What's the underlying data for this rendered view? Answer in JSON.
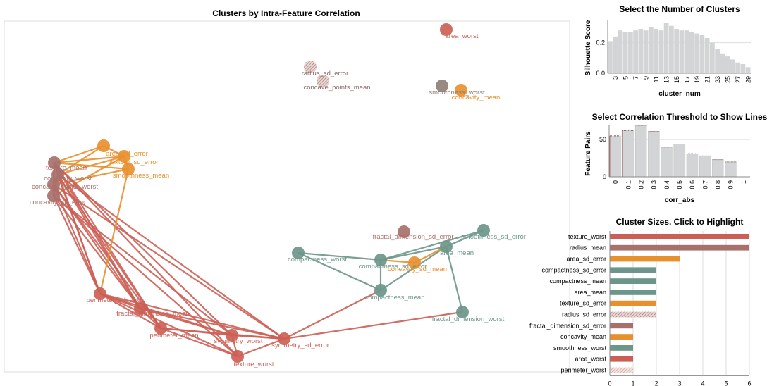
{
  "colors": {
    "red": "#cc5f55",
    "brown": "#a8706b",
    "orange": "#e8902e",
    "teal": "#6c968a",
    "gray": "#8f7f77",
    "bar": "#d3d4d5",
    "rose": "#b8847f"
  },
  "chart_data": [
    {
      "id": "network",
      "type": "network",
      "title": "Clusters by Intra-Feature Correlation",
      "nodes": [
        {
          "id": "area_worst",
          "label": "area_worst",
          "color": "red"
        },
        {
          "id": "radius_sd_error",
          "label": "radius_sd_error",
          "color": "rose",
          "hatched": true
        },
        {
          "id": "concave_points_mean",
          "label": "concave_points_mean",
          "color": "rose",
          "hatched": true
        },
        {
          "id": "smoothness_worst",
          "label": "smoothness_worst",
          "color": "gray"
        },
        {
          "id": "concavity_mean",
          "label": "concavity_mean",
          "color": "orange"
        },
        {
          "id": "o1",
          "label": "area_sd_error",
          "color": "orange"
        },
        {
          "id": "o2",
          "label": "texture_sd_error",
          "color": "orange"
        },
        {
          "id": "o3",
          "label": "smoothness_mean",
          "color": "orange"
        },
        {
          "id": "b1",
          "label": "texture_mean",
          "color": "brown"
        },
        {
          "id": "b2",
          "label": "concavity_worst",
          "color": "brown"
        },
        {
          "id": "b3",
          "label": "concave_points_worst",
          "color": "brown"
        },
        {
          "id": "b4",
          "label": "concavity_sd_error",
          "color": "brown"
        },
        {
          "id": "perimeter_sd_error",
          "label": "perimeter_sd_error",
          "color": "red"
        },
        {
          "id": "fractal_dimension_mean",
          "label": "fractal_dimension_mean",
          "color": "red"
        },
        {
          "id": "perimeter_mean",
          "label": "perimeter_mean",
          "color": "red"
        },
        {
          "id": "symmetry_worst",
          "label": "symmetry_worst",
          "color": "red"
        },
        {
          "id": "symmetry_sd_error",
          "label": "symmetry_sd_error",
          "color": "red"
        },
        {
          "id": "texture_worst",
          "label": "texture_worst",
          "color": "red"
        },
        {
          "id": "compactness_worst",
          "label": "compactness_worst",
          "color": "teal"
        },
        {
          "id": "fractal_dimension_sd_error",
          "label": "fractal_dimension_sd_error",
          "color": "brown"
        },
        {
          "id": "smoothness_sd_error",
          "label": "smoothness_sd_error",
          "color": "teal"
        },
        {
          "id": "area_mean",
          "label": "area_mean",
          "color": "teal"
        },
        {
          "id": "compactness_sd_error",
          "label": "compactness_sd_error",
          "color": "teal"
        },
        {
          "id": "concavity_sd_mean",
          "label": "concavity_sd_mean",
          "color": "orange"
        },
        {
          "id": "compactness_mean",
          "label": "compactness_mean",
          "color": "teal"
        },
        {
          "id": "fractal_dimension_worst",
          "label": "fractal_dimension_worst",
          "color": "teal"
        }
      ],
      "edges": [
        [
          "b1",
          "b2",
          "red"
        ],
        [
          "b1",
          "b3",
          "red"
        ],
        [
          "b1",
          "b4",
          "red"
        ],
        [
          "b2",
          "b3",
          "red"
        ],
        [
          "b2",
          "b4",
          "red"
        ],
        [
          "b3",
          "b4",
          "red"
        ],
        [
          "b1",
          "o1",
          "orange"
        ],
        [
          "b1",
          "o2",
          "orange"
        ],
        [
          "b1",
          "o3",
          "orange"
        ],
        [
          "b2",
          "o1",
          "orange"
        ],
        [
          "b2",
          "o2",
          "orange"
        ],
        [
          "b3",
          "o3",
          "orange"
        ],
        [
          "b4",
          "o2",
          "orange"
        ],
        [
          "o1",
          "o2",
          "orange"
        ],
        [
          "o2",
          "o3",
          "orange"
        ],
        [
          "b1",
          "perimeter_sd_error",
          "red"
        ],
        [
          "b2",
          "perimeter_sd_error",
          "red"
        ],
        [
          "b3",
          "perimeter_sd_error",
          "red"
        ],
        [
          "b4",
          "perimeter_sd_error",
          "red"
        ],
        [
          "b1",
          "fractal_dimension_mean",
          "red"
        ],
        [
          "b2",
          "fractal_dimension_mean",
          "red"
        ],
        [
          "b3",
          "fractal_dimension_mean",
          "red"
        ],
        [
          "b4",
          "fractal_dimension_mean",
          "red"
        ],
        [
          "b1",
          "perimeter_mean",
          "red"
        ],
        [
          "b3",
          "perimeter_mean",
          "red"
        ],
        [
          "b2",
          "perimeter_mean",
          "red"
        ],
        [
          "b1",
          "symmetry_worst",
          "red"
        ],
        [
          "b4",
          "symmetry_worst",
          "red"
        ],
        [
          "b2",
          "symmetry_sd_error",
          "red"
        ],
        [
          "b3",
          "symmetry_sd_error",
          "red"
        ],
        [
          "b1",
          "texture_worst",
          "red"
        ],
        [
          "b4",
          "texture_worst",
          "red"
        ],
        [
          "o3",
          "perimeter_sd_error",
          "orange"
        ],
        [
          "perimeter_sd_error",
          "fractal_dimension_mean",
          "red"
        ],
        [
          "perimeter_sd_error",
          "perimeter_mean",
          "red"
        ],
        [
          "perimeter_sd_error",
          "symmetry_worst",
          "red"
        ],
        [
          "perimeter_sd_error",
          "symmetry_sd_error",
          "red"
        ],
        [
          "perimeter_sd_error",
          "texture_worst",
          "red"
        ],
        [
          "fractal_dimension_mean",
          "perimeter_mean",
          "red"
        ],
        [
          "fractal_dimension_mean",
          "symmetry_worst",
          "red"
        ],
        [
          "fractal_dimension_mean",
          "symmetry_sd_error",
          "red"
        ],
        [
          "perimeter_mean",
          "symmetry_worst",
          "red"
        ],
        [
          "perimeter_mean",
          "texture_worst",
          "red"
        ],
        [
          "perimeter_mean",
          "symmetry_sd_error",
          "red"
        ],
        [
          "symmetry_worst",
          "symmetry_sd_error",
          "red"
        ],
        [
          "symmetry_worst",
          "texture_worst",
          "red"
        ],
        [
          "symmetry_sd_error",
          "texture_worst",
          "red"
        ],
        [
          "symmetry_sd_error",
          "compactness_mean",
          "red"
        ],
        [
          "symmetry_sd_error",
          "fractal_dimension_worst",
          "red"
        ],
        [
          "compactness_worst",
          "compactness_sd_error",
          "teal"
        ],
        [
          "compactness_worst",
          "compactness_mean",
          "teal"
        ],
        [
          "compactness_sd_error",
          "compactness_mean",
          "teal"
        ],
        [
          "compactness_sd_error",
          "area_mean",
          "teal"
        ],
        [
          "compactness_sd_error",
          "smoothness_sd_error",
          "teal"
        ],
        [
          "area_mean",
          "compactness_mean",
          "teal"
        ],
        [
          "area_mean",
          "smoothness_sd_error",
          "teal"
        ],
        [
          "area_mean",
          "fractal_dimension_worst",
          "teal"
        ],
        [
          "concavity_sd_mean",
          "compactness_sd_error",
          "orange"
        ],
        [
          "concavity_sd_mean",
          "area_mean",
          "orange"
        ]
      ]
    },
    {
      "id": "silhouette",
      "type": "bar",
      "title": "Select the Number of Clusters",
      "xlabel": "cluster_num",
      "ylabel": "Silhouette Score",
      "x": [
        2,
        3,
        4,
        5,
        6,
        7,
        8,
        9,
        10,
        11,
        12,
        13,
        14,
        15,
        16,
        17,
        18,
        19,
        20,
        21,
        22,
        23,
        24,
        25,
        26,
        27,
        28,
        29
      ],
      "values": [
        0.21,
        0.24,
        0.28,
        0.27,
        0.27,
        0.28,
        0.29,
        0.28,
        0.3,
        0.29,
        0.28,
        0.33,
        0.31,
        0.29,
        0.28,
        0.28,
        0.27,
        0.26,
        0.25,
        0.23,
        0.2,
        0.16,
        0.13,
        0.11,
        0.09,
        0.07,
        0.06,
        0.04
      ],
      "ylim": [
        0,
        0.35
      ],
      "yticks": [
        "0.0",
        "0.2"
      ],
      "xticks": [
        "3",
        "5",
        "7",
        "9",
        "11",
        "13",
        "15",
        "17",
        "19",
        "21",
        "23",
        "25",
        "27",
        "29"
      ]
    },
    {
      "id": "correlation",
      "type": "bar",
      "title": "Select Correlation Threshold to Show Lines",
      "xlabel": "corr_abs",
      "ylabel": "Feature Pairs",
      "categories": [
        "0",
        "0.1",
        "0.2",
        "0.3",
        "0.4",
        "0.5",
        "0.6",
        "0.7",
        "0.8",
        "0.9",
        "1"
      ],
      "values": [
        55,
        62,
        69,
        61,
        40,
        44,
        31,
        28,
        23,
        20,
        0
      ],
      "ylim": [
        0,
        70
      ],
      "yticks": [
        "0",
        "50"
      ]
    },
    {
      "id": "sizes",
      "type": "bar",
      "orientation": "horizontal",
      "title": "Cluster Sizes. Click to Highlight",
      "categories": [
        "texture_worst",
        "radius_mean",
        "area_sd_error",
        "compactness_sd_error",
        "compactness_mean",
        "area_mean",
        "texture_sd_error",
        "radius_sd_error",
        "fractal_dimension_sd_error",
        "concavity_mean",
        "smoothness_worst",
        "area_worst",
        "perimeter_worst"
      ],
      "values": [
        6,
        6,
        3,
        2,
        2,
        2,
        2,
        2,
        1,
        1,
        1,
        1,
        1
      ],
      "colors": [
        "red",
        "brown",
        "orange",
        "teal",
        "teal",
        "teal",
        "orange",
        "rose",
        "brown",
        "orange",
        "teal",
        "red",
        "red"
      ],
      "xlim": [
        0,
        6
      ],
      "xticks": [
        "0",
        "1",
        "2",
        "3",
        "4",
        "5",
        "6"
      ]
    }
  ]
}
